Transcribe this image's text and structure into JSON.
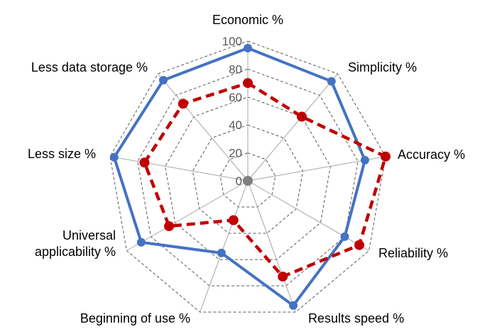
{
  "chart_data": {
    "type": "radar",
    "title": "",
    "categories": [
      "Economic %",
      "Simplicity %",
      "Accuracy %",
      "Reliability %",
      "Results speed %",
      "Beginning of use %",
      "Universal applicability %",
      "Less size %",
      "Less data storage %"
    ],
    "axis": {
      "min": 0,
      "max": 100,
      "ticks": [
        0,
        20,
        40,
        60,
        80,
        100
      ]
    },
    "grid": true,
    "legend": "none",
    "series": [
      {
        "color": "#4472c4",
        "line_style": "solid",
        "marker_color": "#4472c4",
        "values": [
          95,
          93,
          85,
          80,
          95,
          55,
          88,
          97,
          94
        ]
      },
      {
        "color": "#c00000",
        "line_style": "dashed",
        "marker_color": "#c00000",
        "values": [
          70,
          60,
          100,
          92,
          73,
          30,
          65,
          75,
          72
        ]
      }
    ],
    "center_marker_color": "#7f7f7f"
  }
}
